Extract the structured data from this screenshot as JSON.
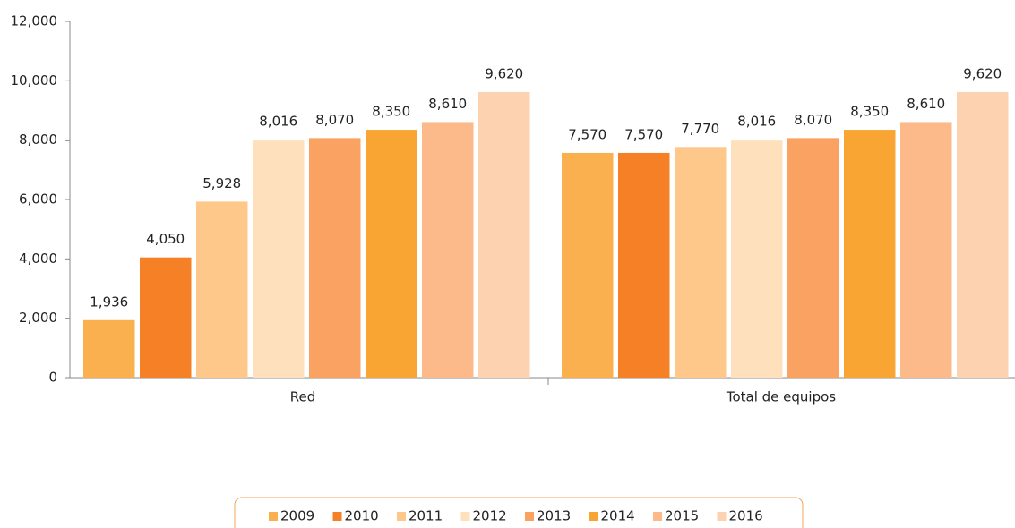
{
  "chart_data": {
    "type": "bar",
    "categories": [
      "Red",
      "Total de equipos"
    ],
    "series": [
      {
        "name": "2009",
        "color": "#fbb04f",
        "values": [
          1936,
          7570
        ],
        "value_labels": [
          "1,936",
          "7,570"
        ]
      },
      {
        "name": "2010",
        "color": "#f58025",
        "values": [
          4050,
          7570
        ],
        "value_labels": [
          "4,050",
          "7,570"
        ]
      },
      {
        "name": "2011",
        "color": "#fdc88a",
        "values": [
          5928,
          7770
        ],
        "value_labels": [
          "5,928",
          "7,770"
        ]
      },
      {
        "name": "2012",
        "color": "#fee1bc",
        "values": [
          8016,
          8016
        ],
        "value_labels": [
          "8,016",
          "8,016"
        ]
      },
      {
        "name": "2013",
        "color": "#f9a262",
        "values": [
          8070,
          8070
        ],
        "value_labels": [
          "8,070",
          "8,070"
        ]
      },
      {
        "name": "2014",
        "color": "#f9a533",
        "values": [
          8350,
          8350
        ],
        "value_labels": [
          "8,350",
          "8,350"
        ]
      },
      {
        "name": "2015",
        "color": "#fcb98a",
        "values": [
          8610,
          8610
        ],
        "value_labels": [
          "8,610",
          "8,610"
        ]
      },
      {
        "name": "2016",
        "color": "#fdd2b0",
        "values": [
          9620,
          9620
        ],
        "value_labels": [
          "9,620",
          "9,620"
        ]
      }
    ],
    "ylim": [
      0,
      12000
    ],
    "yticks": [
      0,
      {
        "value": 2000,
        "label": "2,000"
      },
      {
        "value": 4000,
        "label": "4,000"
      },
      {
        "value": 6000,
        "label": "6,000"
      },
      {
        "value": 8000,
        "label": "8,000"
      },
      {
        "value": 10000,
        "label": "10,000"
      },
      {
        "value": 12000,
        "label": "12,000"
      }
    ],
    "grid": false,
    "legend": "bottom"
  }
}
